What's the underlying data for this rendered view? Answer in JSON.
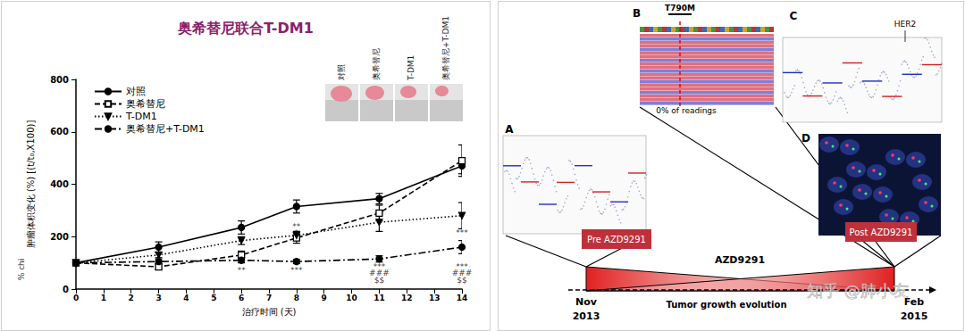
{
  "chart_data": {
    "type": "line",
    "title": "奥希替尼联合T-DM1",
    "xlabel": "治疗时间 (天)",
    "ylabel": "肿瘤体积变化 (%) [(t/t₀,X100)]",
    "ylabel_fragment": "% chi",
    "photo_labels": [
      "对照",
      "奥希替尼",
      "T-DM1",
      "奥希替尼+T-DM1"
    ],
    "x": [
      0,
      3,
      6,
      8,
      11,
      14
    ],
    "series": [
      {
        "name": "对照",
        "color": "#000000",
        "marker": "circle",
        "line_style": "solid",
        "values": [
          100,
          160,
          235,
          315,
          345,
          470
        ],
        "errors": [
          5,
          20,
          25,
          25,
          20,
          30
        ]
      },
      {
        "name": "奥希替尼",
        "color": "#000000",
        "marker": "square-open",
        "line_style": "dashed",
        "values": [
          100,
          85,
          130,
          195,
          290,
          490
        ],
        "errors": [
          5,
          10,
          15,
          20,
          30,
          60
        ]
      },
      {
        "name": "T-DM1",
        "color": "#000000",
        "marker": "triangle-down",
        "line_style": "dotted",
        "values": [
          100,
          130,
          185,
          205,
          255,
          280
        ],
        "errors": [
          5,
          10,
          15,
          15,
          35,
          50
        ]
      },
      {
        "name": "奥希替尼+T-DM1",
        "color": "#000000",
        "marker": "circle",
        "line_style": "dashdot",
        "values": [
          100,
          105,
          110,
          105,
          115,
          160
        ],
        "errors": [
          5,
          10,
          10,
          8,
          12,
          25
        ]
      }
    ],
    "annotations": [
      {
        "x": 6,
        "y": 70,
        "text": "**"
      },
      {
        "x": 8,
        "y": 240,
        "text": "**"
      },
      {
        "x": 8,
        "y": 215,
        "text": "*"
      },
      {
        "x": 8,
        "y": 70,
        "text": "***"
      },
      {
        "x": 11,
        "y": 85,
        "text": "***"
      },
      {
        "x": 11,
        "y": 60,
        "text": "###"
      },
      {
        "x": 11,
        "y": 35,
        "text": "$$"
      },
      {
        "x": 14,
        "y": 215,
        "text": "***"
      },
      {
        "x": 14,
        "y": 85,
        "text": "***"
      },
      {
        "x": 14,
        "y": 60,
        "text": "###"
      },
      {
        "x": 14,
        "y": 35,
        "text": "$$"
      }
    ],
    "xlim": [
      0,
      14
    ],
    "xticks": [
      0,
      1,
      2,
      3,
      4,
      5,
      6,
      7,
      8,
      9,
      10,
      11,
      12,
      13,
      14
    ],
    "ylim": [
      0,
      800
    ],
    "yticks": [
      0,
      200,
      400,
      600,
      800
    ],
    "grid": false,
    "legend": "upper left"
  },
  "diagram": {
    "panel_labels": [
      "A",
      "B",
      "C",
      "D"
    ],
    "mutation": "T790M",
    "reading": "0% of readings",
    "gene": "HER2",
    "pre": "Pre AZD9291",
    "post": "Post AZD9291",
    "drug": "AZD9291",
    "start": [
      "Nov",
      "2013"
    ],
    "end": [
      "Feb",
      "2015"
    ],
    "axis_label": "Tumor growth evolution",
    "watermark": "知乎 @肺小友"
  }
}
